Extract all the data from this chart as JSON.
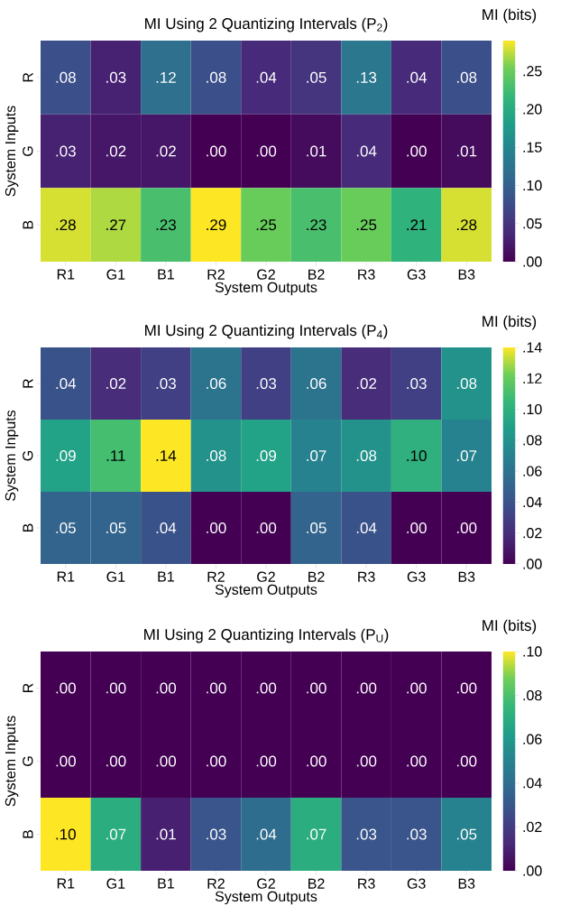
{
  "chart_data": [
    {
      "type": "heatmap",
      "title": "MI Using 2 Quantizing Intervals (P$_{2}$)",
      "xlabel": "System Outputs",
      "ylabel": "System Inputs",
      "clabel": "MI (bits)",
      "categories": [
        "R1",
        "G1",
        "B1",
        "R2",
        "G2",
        "B2",
        "R3",
        "G3",
        "B3"
      ],
      "y_categories": [
        "R",
        "G",
        "B"
      ],
      "cells": [
        [
          0.08,
          0.03,
          0.12,
          0.08,
          0.04,
          0.05,
          0.13,
          0.04,
          0.08
        ],
        [
          0.03,
          0.02,
          0.02,
          0.0,
          0.0,
          0.01,
          0.04,
          0.0,
          0.01
        ],
        [
          0.28,
          0.27,
          0.23,
          0.29,
          0.25,
          0.23,
          0.25,
          0.21,
          0.28
        ]
      ],
      "cell_labels": [
        [
          ".08",
          ".03",
          ".12",
          ".08",
          ".04",
          ".05",
          ".13",
          ".04",
          ".08"
        ],
        [
          ".03",
          ".02",
          ".02",
          ".00",
          ".00",
          ".01",
          ".04",
          ".00",
          ".01"
        ],
        [
          ".28",
          ".27",
          ".23",
          ".29",
          ".25",
          ".23",
          ".25",
          ".21",
          ".28"
        ]
      ],
      "clim": [
        0,
        0.29
      ],
      "cticks": [
        {
          "value": 0,
          "label": ".00"
        },
        {
          "value": 0.05,
          "label": ".05"
        },
        {
          "value": 0.1,
          "label": ".10"
        },
        {
          "value": 0.15,
          "label": ".15"
        },
        {
          "value": 0.2,
          "label": ".20"
        },
        {
          "value": 0.25,
          "label": ".25"
        }
      ]
    },
    {
      "type": "heatmap",
      "title": "MI Using 2 Quantizing Intervals (P$_{4}$)",
      "xlabel": "System Outputs",
      "ylabel": "System Inputs",
      "clabel": "MI (bits)",
      "categories": [
        "R1",
        "G1",
        "B1",
        "R2",
        "G2",
        "B2",
        "R3",
        "G3",
        "B3"
      ],
      "y_categories": [
        "R",
        "G",
        "B"
      ],
      "cells": [
        [
          0.04,
          0.02,
          0.03,
          0.06,
          0.03,
          0.06,
          0.02,
          0.03,
          0.08
        ],
        [
          0.09,
          0.11,
          0.14,
          0.08,
          0.09,
          0.07,
          0.08,
          0.1,
          0.07
        ],
        [
          0.05,
          0.05,
          0.04,
          0.0,
          0.0,
          0.05,
          0.04,
          0.0,
          0.0
        ]
      ],
      "cell_labels": [
        [
          ".04",
          ".02",
          ".03",
          ".06",
          ".03",
          ".06",
          ".02",
          ".03",
          ".08"
        ],
        [
          ".09",
          ".11",
          ".14",
          ".08",
          ".09",
          ".07",
          ".08",
          ".10",
          ".07"
        ],
        [
          ".05",
          ".05",
          ".04",
          ".00",
          ".00",
          ".05",
          ".04",
          ".00",
          ".00"
        ]
      ],
      "clim": [
        0,
        0.14
      ],
      "cticks": [
        {
          "value": 0,
          "label": ".00"
        },
        {
          "value": 0.02,
          "label": ".02"
        },
        {
          "value": 0.04,
          "label": ".04"
        },
        {
          "value": 0.06,
          "label": ".06"
        },
        {
          "value": 0.08,
          "label": ".08"
        },
        {
          "value": 0.1,
          "label": ".10"
        },
        {
          "value": 0.12,
          "label": ".12"
        },
        {
          "value": 0.14,
          "label": ".14"
        }
      ]
    },
    {
      "type": "heatmap",
      "title": "MI Using 2 Quantizing Intervals (P$_{U}$)",
      "xlabel": "System Outputs",
      "ylabel": "System Inputs",
      "clabel": "MI (bits)",
      "categories": [
        "R1",
        "G1",
        "B1",
        "R2",
        "G2",
        "B2",
        "R3",
        "G3",
        "B3"
      ],
      "y_categories": [
        "R",
        "G",
        "B"
      ],
      "cells": [
        [
          0.0,
          0.0,
          0.0,
          0.0,
          0.0,
          0.0,
          0.0,
          0.0,
          0.0
        ],
        [
          0.0,
          0.0,
          0.0,
          0.0,
          0.0,
          0.0,
          0.0,
          0.0,
          0.0
        ],
        [
          0.1,
          0.07,
          0.01,
          0.03,
          0.04,
          0.07,
          0.03,
          0.03,
          0.05
        ]
      ],
      "cell_labels": [
        [
          ".00",
          ".00",
          ".00",
          ".00",
          ".00",
          ".00",
          ".00",
          ".00",
          ".00"
        ],
        [
          ".00",
          ".00",
          ".00",
          ".00",
          ".00",
          ".00",
          ".00",
          ".00",
          ".00"
        ],
        [
          ".10",
          ".07",
          ".01",
          ".03",
          ".04",
          ".07",
          ".03",
          ".03",
          ".05"
        ]
      ],
      "clim": [
        0,
        0.1
      ],
      "cticks": [
        {
          "value": 0,
          "label": ".00"
        },
        {
          "value": 0.02,
          "label": ".02"
        },
        {
          "value": 0.04,
          "label": ".04"
        },
        {
          "value": 0.06,
          "label": ".06"
        },
        {
          "value": 0.08,
          "label": ".08"
        },
        {
          "value": 0.1,
          "label": ".10"
        }
      ]
    }
  ]
}
